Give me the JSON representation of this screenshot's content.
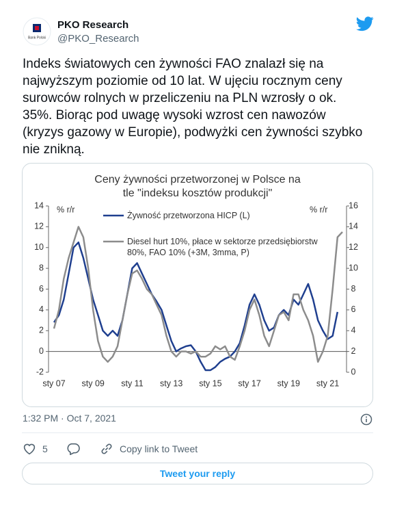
{
  "tweet": {
    "name": "PKO Research",
    "handle": "@PKO_Research",
    "avatar_label": "Bank Polski",
    "text": "Indeks światowych cen żywności FAO znalazł się na najwyższym poziomie od 10 lat. W ujęciu rocznym ceny surowców rolnych w przeliczeniu na PLN wzrosły o ok. 35%. Biorąc pod uwagę wysoki wzrost cen nawozów (kryzys gazowy w Europie), podwyżki cen żywności szybko nie znikną.",
    "timestamp": "1:32 PM · Oct 7, 2021",
    "likes": 5,
    "copy_link": "Copy link to Tweet",
    "reply": "Tweet your reply"
  },
  "chart_data": {
    "type": "line",
    "title": "Ceny żywności przetworzonej w Polsce na tle \"indeksu kosztów produkcji\"",
    "y_label": "% r/r",
    "y2_label": "% r/r",
    "categories": [
      "sty 07",
      null,
      null,
      null,
      null,
      null,
      null,
      null,
      "sty 09",
      null,
      null,
      null,
      null,
      null,
      null,
      null,
      "sty 11",
      null,
      null,
      null,
      null,
      null,
      null,
      null,
      "sty 13",
      null,
      null,
      null,
      null,
      null,
      null,
      null,
      "sty 15",
      null,
      null,
      null,
      null,
      null,
      null,
      null,
      "sty 17",
      null,
      null,
      null,
      null,
      null,
      null,
      null,
      "sty 19",
      null,
      null,
      null,
      null,
      null,
      null,
      null,
      "sty 21",
      null,
      null,
      null
    ],
    "series": [
      {
        "name": "Żywność przetworzona HICP (L)",
        "color": "#1f3f8f",
        "axis": "y",
        "values": [
          2.8,
          3.5,
          5,
          7.5,
          10,
          10.5,
          9,
          7,
          5,
          3.5,
          2,
          1.5,
          2,
          1.5,
          3,
          5.5,
          8,
          8.5,
          7.5,
          6.5,
          5.5,
          4.8,
          4,
          2.5,
          1,
          0,
          0.3,
          0.5,
          0.6,
          0,
          -1,
          -1.8,
          -1.8,
          -1.5,
          -1,
          -0.7,
          -0.5,
          0,
          0.8,
          2.5,
          4.5,
          5.5,
          4.5,
          3,
          2,
          2.3,
          3.5,
          4,
          3.5,
          5,
          4.5,
          5.5,
          6.5,
          5,
          3,
          2,
          1.2,
          1.5,
          3.8,
          null
        ]
      },
      {
        "name": "Diesel hurt 10%, płace w sektorze przedsiębiorstw 80%, FAO 10% (+3M, 3mma, P)",
        "color": "#8c8c8c",
        "axis": "y2",
        "values": [
          4.2,
          6,
          9,
          11,
          12.5,
          14,
          13,
          10,
          6,
          3,
          1.5,
          1,
          1.5,
          2.5,
          5,
          7.5,
          9.5,
          9.8,
          9,
          8,
          7.5,
          6.5,
          5.5,
          3.5,
          2,
          1.5,
          2,
          2,
          1.8,
          2,
          1.5,
          1.5,
          1.8,
          2.5,
          2.2,
          2.5,
          1.5,
          1.2,
          2.5,
          4,
          6,
          7,
          5.5,
          3.5,
          2.5,
          4,
          5.5,
          5.8,
          5,
          7.5,
          7.5,
          6,
          5,
          3.5,
          1,
          2,
          3.5,
          8,
          13,
          13.5
        ]
      }
    ],
    "ylim": [
      -2,
      14
    ],
    "yticks": [
      -2,
      0,
      2,
      4,
      6,
      8,
      10,
      12,
      14
    ],
    "y2lim": [
      0,
      16
    ],
    "y2ticks": [
      0,
      2,
      4,
      6,
      8,
      10,
      12,
      14,
      16
    ],
    "legend": "upper-left"
  }
}
